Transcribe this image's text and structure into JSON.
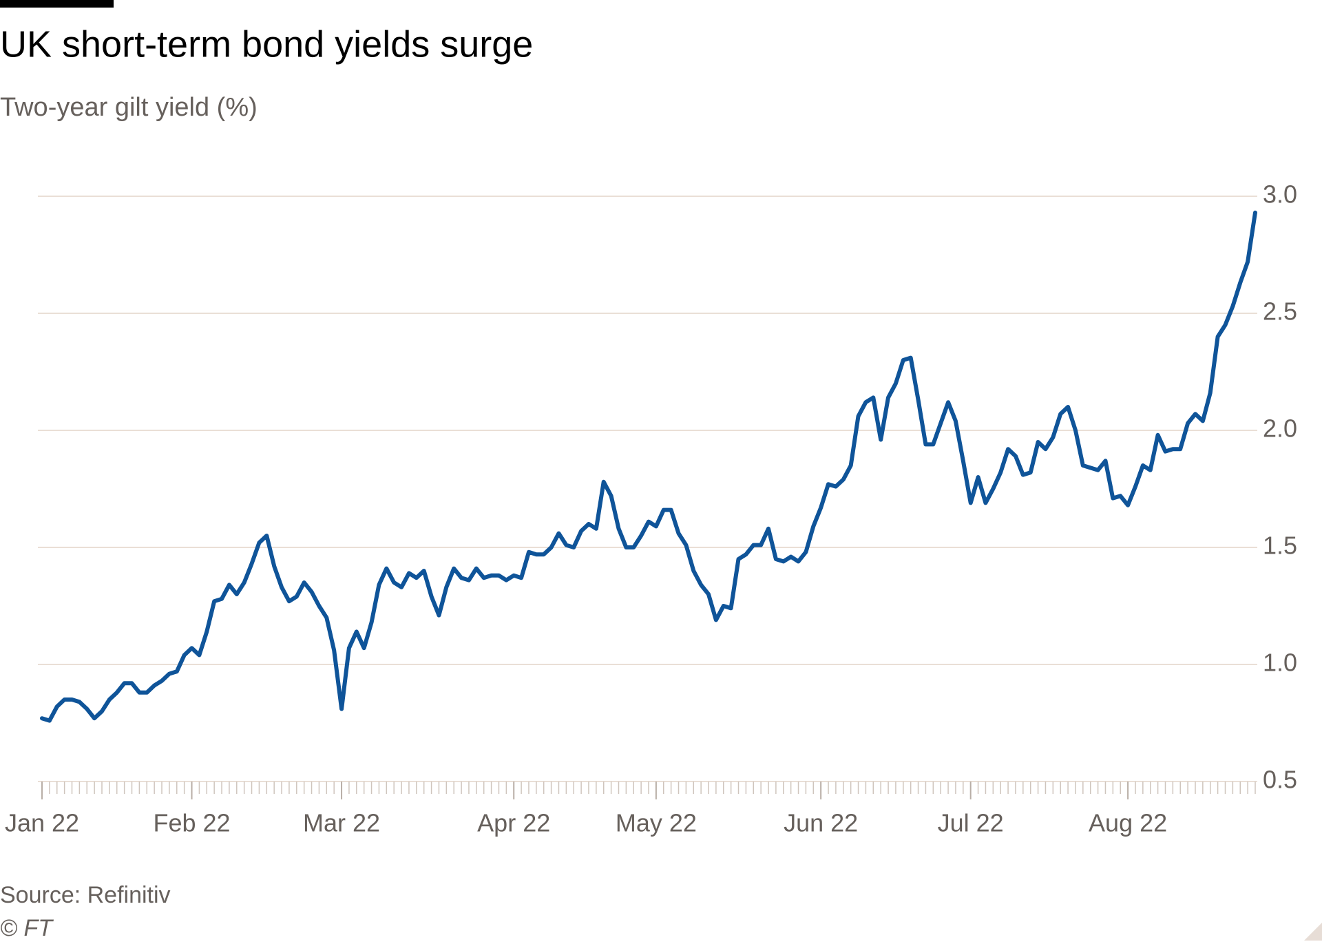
{
  "chart_data": {
    "type": "line",
    "title": "UK short-term bond yields surge",
    "subtitle": "Two-year gilt yield (%)",
    "source": "Source: Refinitiv",
    "copyright": "© FT",
    "categories": [
      "Jan 22",
      null,
      null,
      null,
      null,
      null,
      null,
      null,
      null,
      null,
      null,
      null,
      null,
      null,
      null,
      null,
      null,
      null,
      null,
      null,
      "Feb 22",
      null,
      null,
      null,
      null,
      null,
      null,
      null,
      null,
      null,
      null,
      null,
      null,
      null,
      null,
      null,
      null,
      null,
      null,
      null,
      "Mar 22",
      null,
      null,
      null,
      null,
      null,
      null,
      null,
      null,
      null,
      null,
      null,
      null,
      null,
      null,
      null,
      null,
      null,
      null,
      null,
      null,
      null,
      null,
      "Apr 22",
      null,
      null,
      null,
      null,
      null,
      null,
      null,
      null,
      null,
      null,
      null,
      null,
      null,
      null,
      null,
      null,
      null,
      null,
      "May 22",
      null,
      null,
      null,
      null,
      null,
      null,
      null,
      null,
      null,
      null,
      null,
      null,
      null,
      null,
      null,
      null,
      null,
      null,
      null,
      null,
      null,
      "Jun 22",
      null,
      null,
      null,
      null,
      null,
      null,
      null,
      null,
      null,
      null,
      null,
      null,
      null,
      null,
      null,
      null,
      null,
      null,
      null,
      "Jul 22",
      null,
      null,
      null,
      null,
      null,
      null,
      null,
      null,
      null,
      null,
      null,
      null,
      null,
      null,
      null,
      null,
      null,
      null,
      null,
      null,
      "Aug 22",
      null,
      null,
      null,
      null,
      null,
      null,
      null,
      null,
      null,
      null,
      null,
      null,
      null,
      null,
      null,
      null,
      null
    ],
    "series": [
      {
        "name": "Two-year gilt yield",
        "color": "#0f5499",
        "values": [
          0.77,
          0.76,
          0.82,
          0.85,
          0.85,
          0.84,
          0.81,
          0.77,
          0.8,
          0.85,
          0.88,
          0.92,
          0.92,
          0.88,
          0.88,
          0.91,
          0.93,
          0.96,
          0.97,
          1.04,
          1.07,
          1.04,
          1.14,
          1.27,
          1.28,
          1.34,
          1.3,
          1.35,
          1.43,
          1.52,
          1.55,
          1.42,
          1.33,
          1.27,
          1.29,
          1.35,
          1.31,
          1.25,
          1.2,
          1.06,
          0.81,
          1.07,
          1.14,
          1.07,
          1.18,
          1.34,
          1.41,
          1.35,
          1.33,
          1.39,
          1.37,
          1.4,
          1.29,
          1.21,
          1.33,
          1.41,
          1.37,
          1.36,
          1.41,
          1.37,
          1.38,
          1.38,
          1.36,
          1.38,
          1.37,
          1.48,
          1.47,
          1.47,
          1.5,
          1.56,
          1.51,
          1.5,
          1.57,
          1.6,
          1.58,
          1.78,
          1.72,
          1.58,
          1.5,
          1.5,
          1.55,
          1.61,
          1.59,
          1.66,
          1.66,
          1.56,
          1.51,
          1.4,
          1.34,
          1.3,
          1.19,
          1.25,
          1.24,
          1.45,
          1.47,
          1.51,
          1.51,
          1.58,
          1.45,
          1.44,
          1.46,
          1.44,
          1.48,
          1.59,
          1.67,
          1.77,
          1.76,
          1.79,
          1.85,
          2.06,
          2.12,
          2.14,
          1.96,
          2.14,
          2.2,
          2.3,
          2.31,
          2.13,
          1.94,
          1.94,
          2.03,
          2.12,
          2.04,
          1.87,
          1.69,
          1.8,
          1.69,
          1.75,
          1.82,
          1.92,
          1.89,
          1.81,
          1.82,
          1.95,
          1.92,
          1.97,
          2.07,
          2.1,
          2.0,
          1.85,
          1.84,
          1.83,
          1.87,
          1.71,
          1.72,
          1.68,
          1.76,
          1.85,
          1.83,
          1.98,
          1.91,
          1.92,
          1.92,
          2.03,
          2.07,
          2.04,
          2.16,
          2.4,
          2.45,
          2.53,
          2.63,
          2.72,
          2.93
        ]
      }
    ],
    "ylim": [
      0.5,
      3.0
    ],
    "yticks": [
      0.5,
      {
        "value": 1,
        "label": "1.0"
      },
      1.5,
      {
        "value": 2,
        "label": "2.0"
      },
      2.5,
      {
        "value": 3,
        "label": "3.0"
      }
    ],
    "grid": true
  }
}
